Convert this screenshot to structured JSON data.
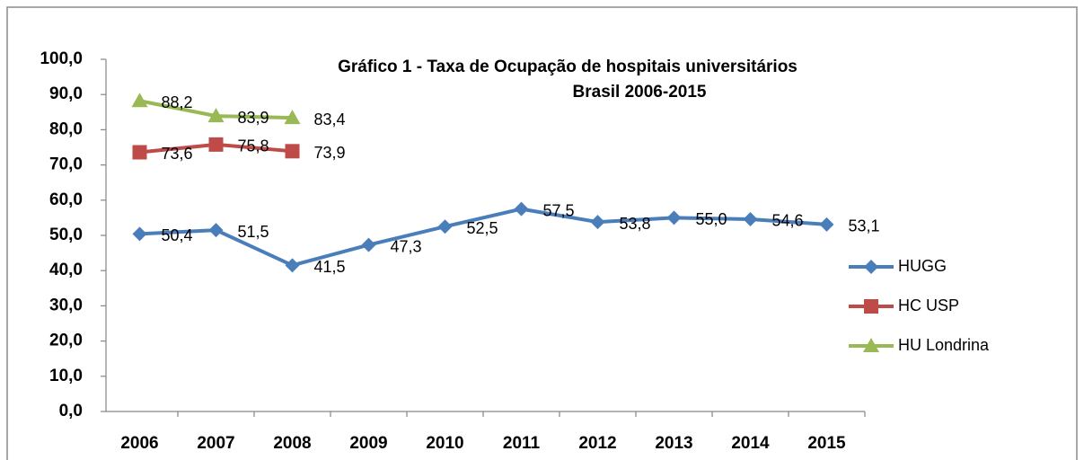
{
  "chart_data": {
    "type": "line",
    "title": "Gráfico 1 - Taxa de Ocupação de hospitais universitários",
    "subtitle": "Brasil 2006-2015",
    "categories": [
      "2006",
      "2007",
      "2008",
      "2009",
      "2010",
      "2011",
      "2012",
      "2013",
      "2014",
      "2015"
    ],
    "series": [
      {
        "name": "HUGG",
        "color": "#4a7ebb",
        "marker": "diamond",
        "values": [
          50.4,
          51.5,
          41.5,
          47.3,
          52.5,
          57.5,
          53.8,
          55.0,
          54.6,
          53.1
        ],
        "value_labels": [
          "50,4",
          "51,5",
          "41,5",
          "47,3",
          "52,5",
          "57,5",
          "53,8",
          "55,0",
          "54,6",
          "53,1"
        ]
      },
      {
        "name": "HC USP",
        "color": "#be4b48",
        "marker": "square",
        "values": [
          73.6,
          75.8,
          73.9,
          null,
          null,
          null,
          null,
          null,
          null,
          null
        ],
        "value_labels": [
          "73,6",
          "75,8",
          "73,9",
          null,
          null,
          null,
          null,
          null,
          null,
          null
        ]
      },
      {
        "name": "HU Londrina",
        "color": "#98b954",
        "marker": "triangle",
        "values": [
          88.2,
          83.9,
          83.4,
          null,
          null,
          null,
          null,
          null,
          null,
          null
        ],
        "value_labels": [
          "88,2",
          "83,9",
          "83,4",
          null,
          null,
          null,
          null,
          null,
          null,
          null
        ]
      }
    ],
    "ylim": [
      0,
      100
    ],
    "yticks": [
      {
        "value": 0,
        "label": "0,0"
      },
      {
        "value": 10,
        "label": "10,0"
      },
      {
        "value": 20,
        "label": "20,0"
      },
      {
        "value": 30,
        "label": "30,0"
      },
      {
        "value": 40,
        "label": "40,0"
      },
      {
        "value": 50,
        "label": "50,0"
      },
      {
        "value": 60,
        "label": "60,0"
      },
      {
        "value": 70,
        "label": "70,0"
      },
      {
        "value": 80,
        "label": "80,0"
      },
      {
        "value": 90,
        "label": "90,0"
      },
      {
        "value": 100,
        "label": "100,0"
      }
    ],
    "grid": false,
    "legend": "right"
  }
}
